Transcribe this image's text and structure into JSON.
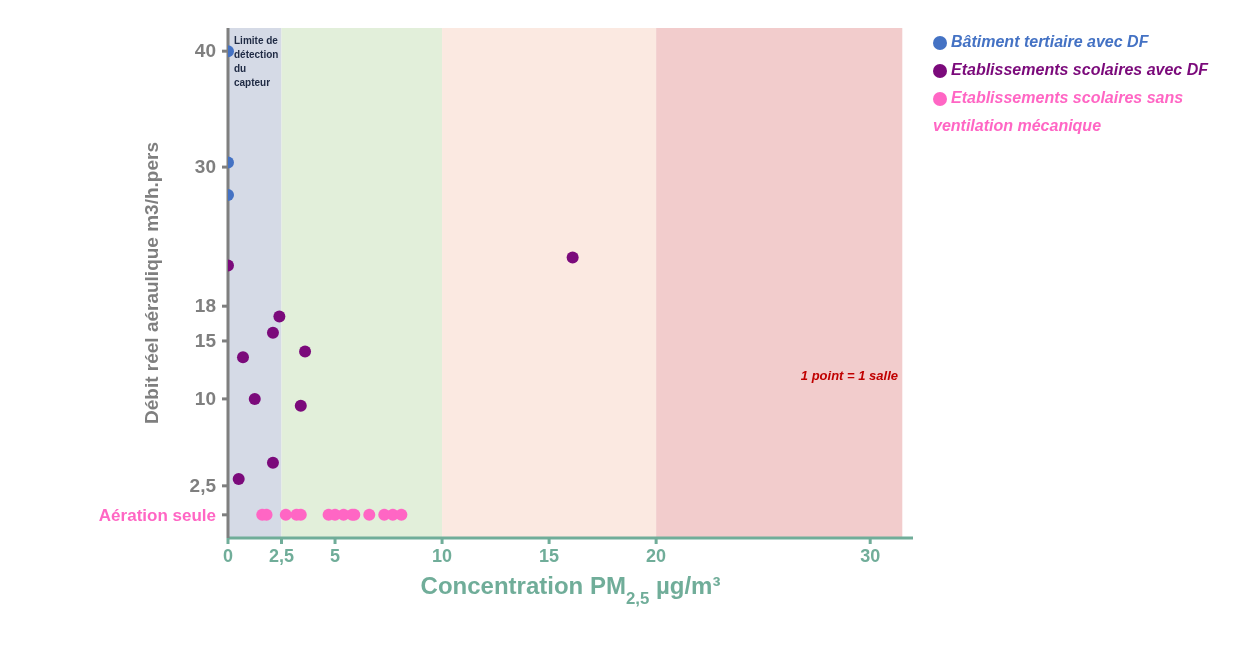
{
  "chart_data": {
    "type": "scatter",
    "xlabel": "Concentration PM$_{2,5}$ µg/m³",
    "ylabel": "Débit réel aéraulique m3/h.pers",
    "xlim": [
      0,
      32
    ],
    "xticks": [
      0,
      {
        "value": 2.5,
        "label": "2,5"
      },
      5,
      10,
      15,
      20,
      30
    ],
    "ylim": [
      -2,
      42
    ],
    "yticks": [
      {
        "value": 0,
        "label": "Aération seule"
      },
      {
        "value": 2.5,
        "label": "2,5"
      },
      10,
      15,
      18,
      30,
      40
    ],
    "grid": false,
    "legend": "right",
    "marker": "circle",
    "bands": [
      {
        "axis": "x",
        "from": 0,
        "to": 2.5,
        "label": "Limite de détection du capteur",
        "color": "#d5dae6"
      },
      {
        "axis": "x",
        "from": 2.5,
        "to": 10,
        "color": "#e2efda"
      },
      {
        "axis": "x",
        "from": 10,
        "to": 20,
        "color": "#fbe9e1"
      },
      {
        "axis": "x",
        "from": 20,
        "to": 31.5,
        "color": "#f2cccc"
      }
    ],
    "annotations": [
      "1 point = 1 salle"
    ],
    "series": [
      {
        "name": "Etablissements scolaires avec DF",
        "color": "#7b0a7b",
        "x": [
          0,
          2.4,
          2.1,
          3.6,
          0.7,
          1.25,
          3.4,
          2.1,
          0.5,
          16.1
        ],
        "values": [
          21.5,
          17.1,
          15.7,
          14.1,
          13.6,
          10,
          9.4,
          4.5,
          3.1,
          22.2
        ]
      },
      {
        "name": "Etablissements scolaires sans ventilation mécanique",
        "color": "#ff66c4",
        "x": [
          1.6,
          1.8,
          2.7,
          3.2,
          3.4,
          4.7,
          5,
          5.4,
          5.8,
          5.9,
          6.6,
          7.3,
          7.7,
          8.1
        ],
        "values": [
          0,
          0,
          0,
          0,
          0,
          0,
          0,
          0,
          0,
          0,
          0,
          0,
          0,
          0
        ]
      },
      {
        "name": "Bâtiment tertiaire avec DF",
        "color": "#4472c4",
        "x": [
          0,
          0,
          0
        ],
        "values": [
          40,
          30.4,
          27.6
        ]
      }
    ]
  }
}
